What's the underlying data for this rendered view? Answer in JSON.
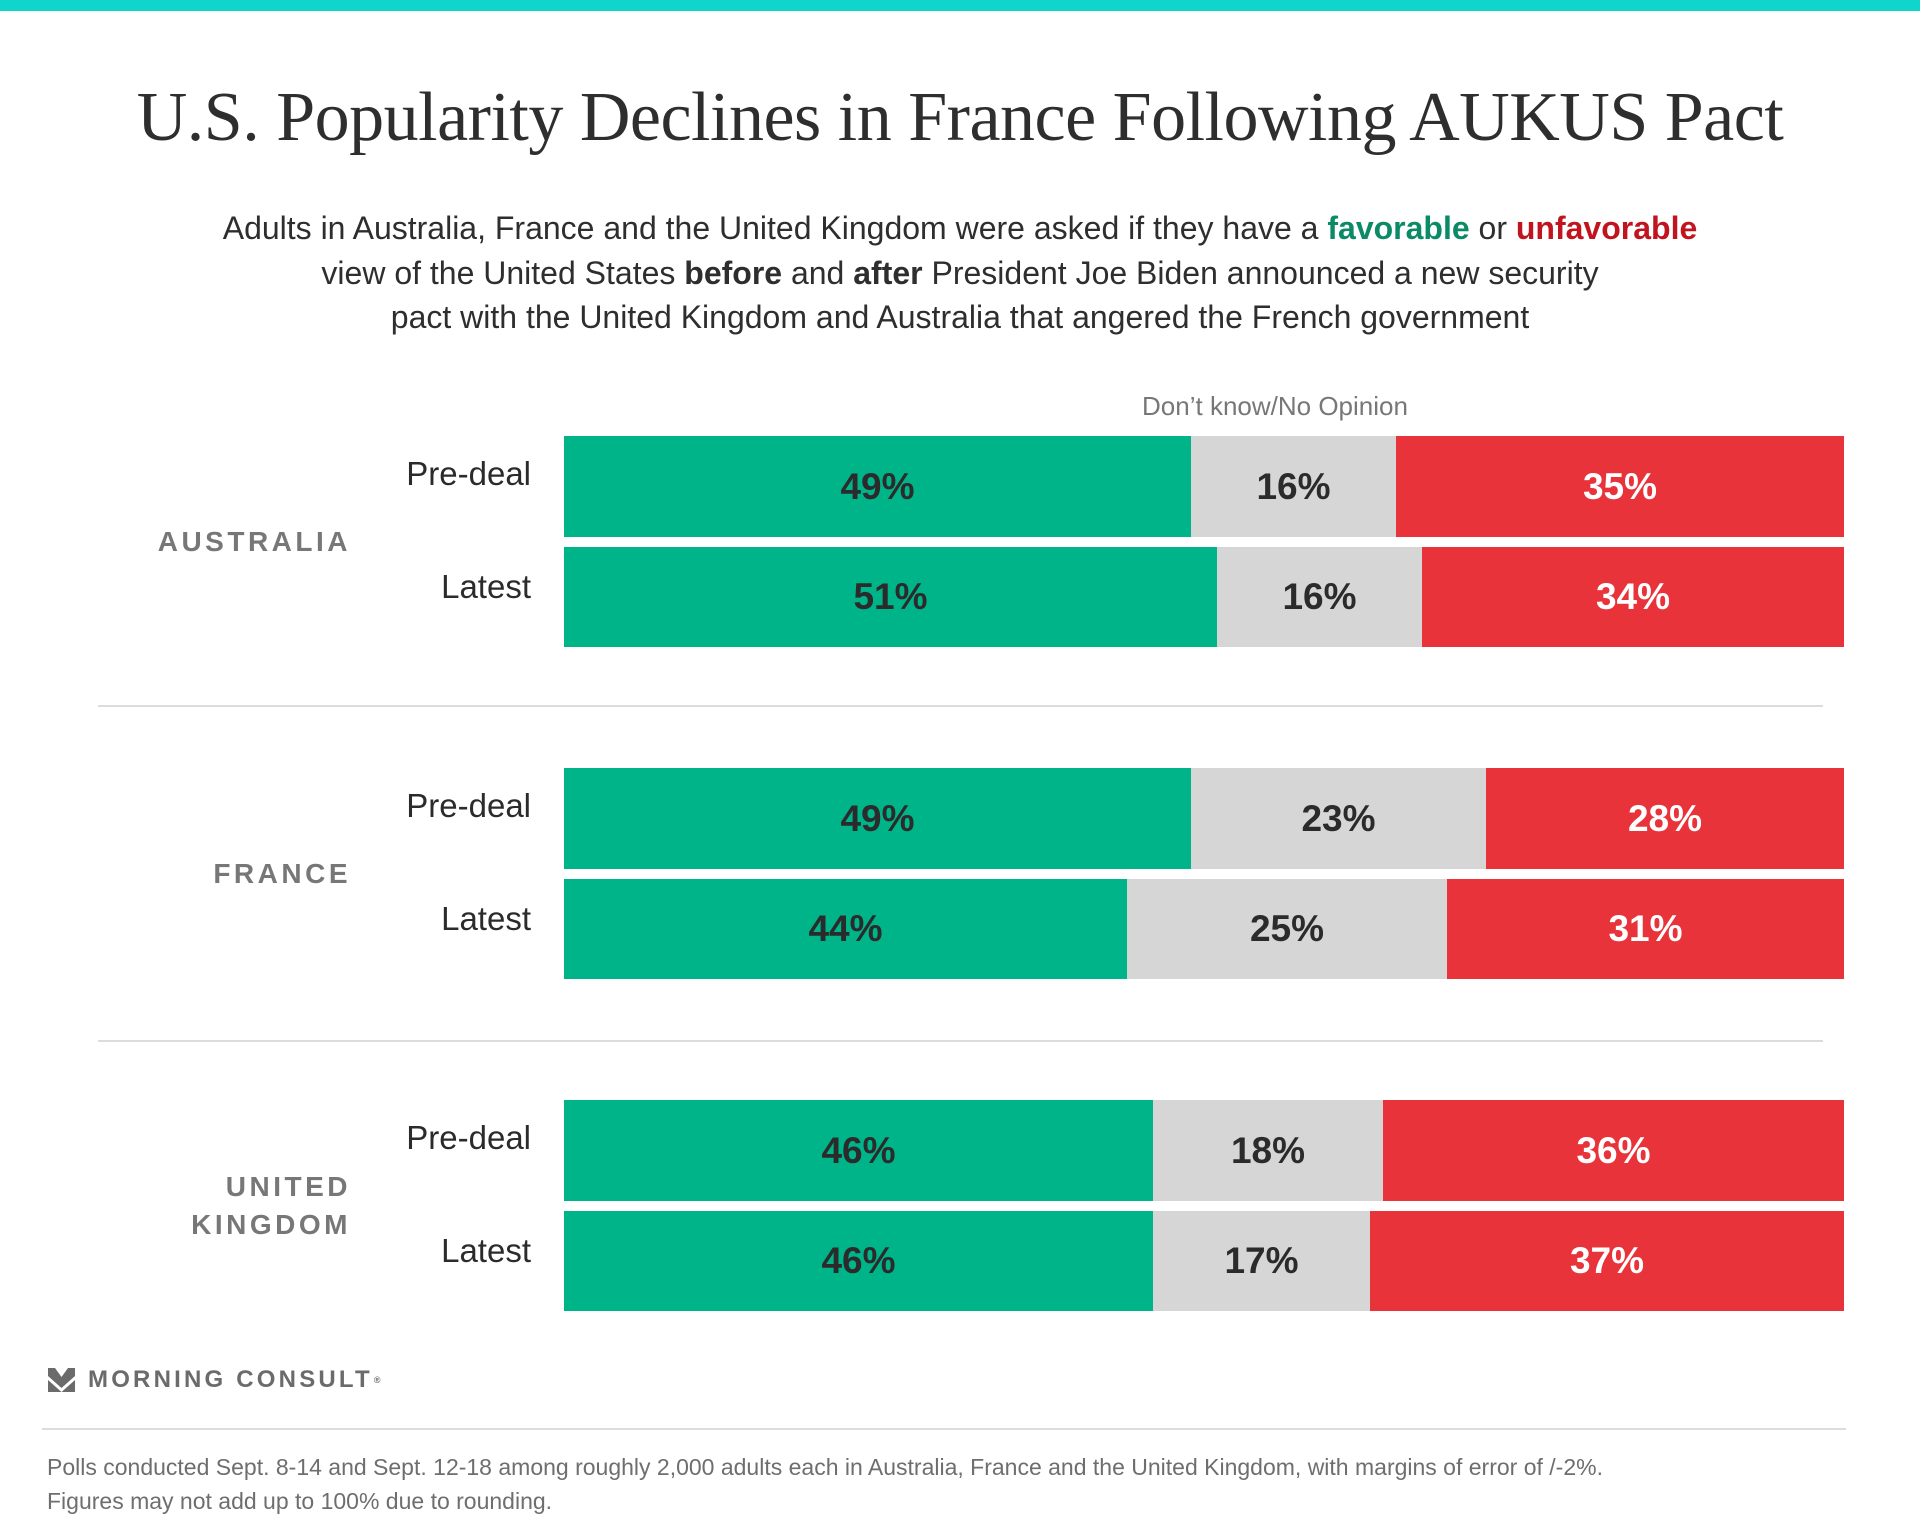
{
  "title": "U.S. Popularity Declines in France Following AUKUS Pact",
  "subtitle": {
    "line1_a": "Adults in Australia, France and the United Kingdom were asked if they have a ",
    "favorable": "favorable",
    "line1_or": " or ",
    "unfavorable": "unfavorable",
    "line2_a": "view of the United States ",
    "before": "before",
    "line2_and": " and ",
    "after": "after",
    "line2_b": " President Joe Biden announced a new security",
    "line3": "pact with the United Kingdom and Australia that angered the French government"
  },
  "colors": {
    "accent_bar": "#10D5CA",
    "favorable": "#00B48A",
    "dont_know": "#D6D6D6",
    "unfavorable": "#E8333A",
    "favorable_text": "#0B8A66",
    "unfavorable_text": "#C0141E"
  },
  "chart_data": {
    "type": "bar",
    "orientation": "horizontal",
    "stacked": true,
    "title": "U.S. Popularity Declines in France Following AUKUS Pact",
    "annotation": "Don’t know/No Opinion",
    "xlim": [
      0,
      100
    ],
    "series_names": [
      "Favorable",
      "Don’t know/No Opinion",
      "Unfavorable"
    ],
    "groups": [
      {
        "name": "AUSTRALIA",
        "rows": [
          {
            "label": "Pre-deal",
            "values": [
              49,
              16,
              35
            ],
            "labels": [
              "49%",
              "16%",
              "35%"
            ]
          },
          {
            "label": "Latest",
            "values": [
              51,
              16,
              34
            ],
            "labels": [
              "51%",
              "16%",
              "34%"
            ]
          }
        ]
      },
      {
        "name": "FRANCE",
        "rows": [
          {
            "label": "Pre-deal",
            "values": [
              49,
              23,
              28
            ],
            "labels": [
              "49%",
              "23%",
              "28%"
            ]
          },
          {
            "label": "Latest",
            "values": [
              44,
              25,
              31
            ],
            "labels": [
              "44%",
              "25%",
              "31%"
            ]
          }
        ]
      },
      {
        "name": "UNITED KINGDOM",
        "name_lines": [
          "UNITED",
          "KINGDOM"
        ],
        "rows": [
          {
            "label": "Pre-deal",
            "values": [
              46,
              18,
              36
            ],
            "labels": [
              "46%",
              "18%",
              "36%"
            ]
          },
          {
            "label": "Latest",
            "values": [
              46,
              17,
              37
            ],
            "labels": [
              "46%",
              "17%",
              "37%"
            ]
          }
        ]
      }
    ]
  },
  "logo": {
    "icon": "morning-consult-m-icon",
    "text": "MORNING CONSULT",
    "mark": "®"
  },
  "footer": {
    "line1": "Polls conducted Sept. 8-14 and Sept. 12-18 among roughly 2,000 adults each in Australia, France and the United Kingdom, with margins of error of /-2%.",
    "line2": "Figures may not add up to 100% due to rounding."
  }
}
